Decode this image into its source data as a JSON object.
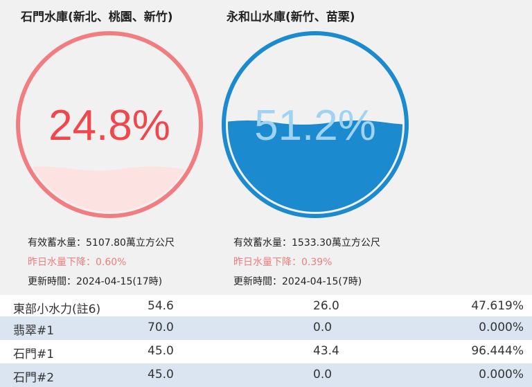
{
  "reservoirs": [
    {
      "title": "石門水庫(新北、桃園、新竹)",
      "percent_text": "24.8%",
      "percent": 24.8,
      "color": "#f27d80",
      "text_color": "#f0474c",
      "fill_color": "#fde2e2",
      "storage": "有效蓄水量：5107.80萬立方公尺",
      "change": "昨日水量下降：0.60%",
      "updated": "更新時間：2024-04-15(17時)"
    },
    {
      "title": "永和山水庫(新竹、苗栗)",
      "percent_text": "51.2%",
      "percent": 51.2,
      "color": "#1b8acf",
      "text_color": "#1d6aa6",
      "fill_color": "#1b8acf",
      "storage": "有效蓄水量：1533.30萬立方公尺",
      "change": "昨日水量下降：0.39%",
      "updated": "更新時間：2024-04-15(7時)"
    }
  ],
  "table": {
    "rows": [
      {
        "name": "東部小水力(註6)",
        "capacity": "54.6",
        "output": "26.0",
        "ratio": "47.619%"
      },
      {
        "name": "翡翠#1",
        "capacity": "70.0",
        "output": "0.0",
        "ratio": "0.000%"
      },
      {
        "name": "石門#1",
        "capacity": "45.0",
        "output": "43.4",
        "ratio": "96.444%"
      },
      {
        "name": "石門#2",
        "capacity": "45.0",
        "output": "0.0",
        "ratio": "0.000%"
      }
    ]
  }
}
